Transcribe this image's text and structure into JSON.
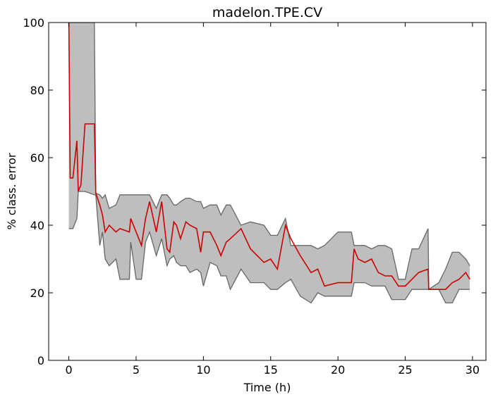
{
  "chart_data": {
    "type": "line",
    "title": "madelon.TPE.CV",
    "xlabel": "Time (h)",
    "ylabel": "% class. error",
    "x": [
      0,
      0.1,
      0.3,
      0.6,
      0.7,
      0.9,
      1.2,
      1.9,
      2.0,
      2.3,
      2.5,
      2.7,
      3.0,
      3.5,
      3.8,
      4.5,
      4.6,
      5.0,
      5.4,
      5.7,
      6.0,
      6.5,
      6.9,
      7.3,
      7.5,
      7.8,
      8.0,
      8.3,
      8.7,
      9.0,
      9.5,
      9.8,
      10.0,
      10.5,
      11.0,
      11.3,
      11.7,
      12.0,
      12.8,
      13.5,
      14.5,
      15.0,
      15.5,
      16.1,
      16.5,
      17.2,
      18.0,
      18.5,
      19.0,
      20.0,
      21.0,
      21.2,
      21.5,
      22.0,
      22.5,
      23.0,
      23.5,
      24.0,
      24.5,
      25.0,
      25.5,
      26.0,
      26.7,
      26.75,
      27.5,
      28.0,
      28.5,
      29.0,
      29.5,
      29.8
    ],
    "series": [
      {
        "color": "#cc0000",
        "values": [
          100,
          54,
          54,
          65,
          50,
          52,
          70,
          70,
          49.5,
          46,
          43,
          38,
          40,
          38,
          39,
          38,
          42,
          38,
          34,
          42,
          47,
          38,
          47,
          33,
          32,
          41,
          40,
          36,
          41,
          40,
          39,
          32,
          38,
          38,
          34,
          31,
          35,
          36,
          39,
          33,
          29,
          30,
          27,
          40,
          36,
          31,
          26,
          27,
          22,
          23,
          23,
          33,
          30,
          29,
          30,
          26,
          25,
          25,
          22,
          22,
          24,
          26,
          27,
          21,
          21,
          21,
          23,
          24,
          26,
          24
        ]
      }
    ],
    "band": {
      "color": "#bebebe",
      "edge": "#666666",
      "lower": [
        39,
        39,
        39,
        42,
        50,
        50,
        50,
        49,
        49,
        34,
        38,
        30,
        28,
        30,
        24,
        24,
        35,
        24,
        24,
        35,
        38,
        31,
        36,
        28,
        30,
        31,
        29,
        28,
        28,
        26,
        27,
        26,
        22,
        29,
        28,
        25,
        25,
        21,
        27,
        23,
        23,
        21,
        21,
        23,
        24,
        19,
        17,
        20,
        19,
        19,
        19,
        23,
        23,
        23,
        22,
        22,
        22,
        18,
        18,
        18,
        21,
        21,
        21,
        21,
        21,
        17,
        17,
        21,
        21,
        21
      ],
      "upper": [
        100,
        100,
        100,
        100,
        100,
        100,
        100,
        100,
        49.5,
        49,
        48,
        49,
        45,
        46,
        49,
        49,
        49,
        49,
        49,
        49,
        49,
        45,
        49,
        49,
        48,
        46,
        46,
        47,
        48,
        48,
        47,
        47,
        45,
        46,
        46,
        43,
        46,
        46,
        40,
        41,
        40,
        37,
        37,
        42,
        34,
        34,
        34,
        33,
        34,
        38,
        38,
        34,
        34,
        34,
        33,
        34,
        34,
        33,
        24,
        24,
        33,
        33,
        39,
        21,
        23,
        27,
        32,
        32,
        30,
        28
      ]
    },
    "xlim": [
      -1.5,
      31
    ],
    "ylim": [
      0,
      100
    ],
    "xticks": [
      0,
      5,
      10,
      15,
      20,
      25,
      30
    ],
    "yticks": [
      0,
      20,
      40,
      60,
      80,
      100
    ]
  }
}
